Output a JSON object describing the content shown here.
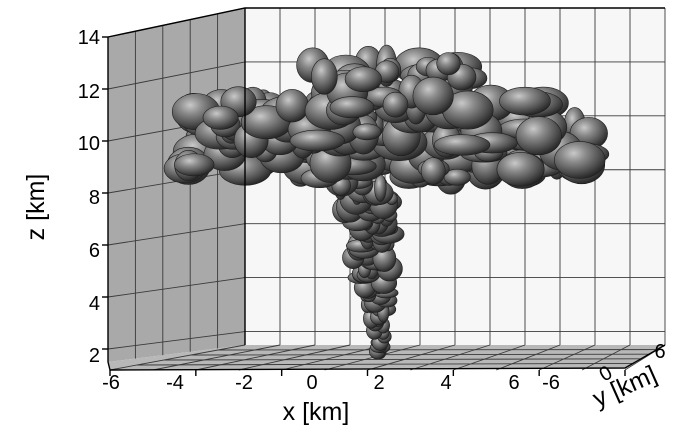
{
  "chart_data": {
    "type": "3d-isosurface",
    "title": "",
    "xlabel": "x [km]",
    "ylabel": "y [km]",
    "zlabel": "z [km]",
    "x_ticks": [
      "-6",
      "-4",
      "-2",
      "0",
      "2",
      "4",
      "6"
    ],
    "y_ticks": [
      "-6",
      "0",
      "6"
    ],
    "z_ticks": [
      "2",
      "4",
      "6",
      "8",
      "10",
      "12",
      "14"
    ],
    "xlim": [
      -6,
      6
    ],
    "ylim": [
      -6,
      6
    ],
    "zlim": [
      1.5,
      14
    ],
    "grid": true,
    "surface_color": "#5a5a5a",
    "back_wall_color": "#f7f7f7",
    "side_wall_color": "#a9a9a9",
    "floor_color": "#b8b8b8"
  }
}
